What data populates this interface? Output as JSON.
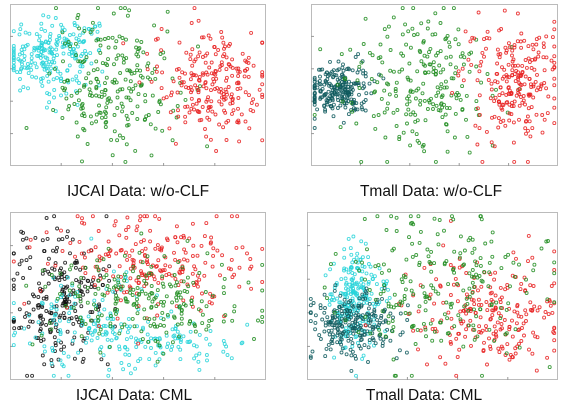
{
  "panels": [
    {
      "caption": "IJCAI Data: w/o-CLF",
      "chart_data": {
        "type": "scatter",
        "title": "IJCAI Data: w/o-CLF",
        "grid": false,
        "legend": "none",
        "series": [
          {
            "color": "#27d3d9",
            "clusters": [
              {
                "cx": -0.72,
                "cy": 0.35,
                "sx": 0.17,
                "sy": 0.22,
                "weight": 0.85
              },
              {
                "cx": -0.45,
                "cy": 0.55,
                "sx": 0.12,
                "sy": 0.12,
                "weight": 0.15
              }
            ]
          },
          {
            "color": "#1e8c1e",
            "clusters": [
              {
                "cx": -0.18,
                "cy": 0.0,
                "sx": 0.24,
                "sy": 0.42,
                "weight": 1.0
              }
            ]
          },
          {
            "color": "#e82020",
            "clusters": [
              {
                "cx": 0.58,
                "cy": 0.05,
                "sx": 0.24,
                "sy": 0.35,
                "weight": 1.0
              }
            ]
          }
        ]
      }
    },
    {
      "caption": "Tmall Data: w/o-CLF",
      "chart_data": {
        "type": "scatter",
        "title": "Tmall Data: w/o-CLF",
        "grid": false,
        "legend": "none",
        "series": [
          {
            "color": "#0f5a5e",
            "clusters": [
              {
                "cx": -0.78,
                "cy": -0.05,
                "sx": 0.13,
                "sy": 0.16,
                "weight": 1.0
              }
            ]
          },
          {
            "color": "#1e8c1e",
            "clusters": [
              {
                "cx": -0.12,
                "cy": 0.05,
                "sx": 0.3,
                "sy": 0.42,
                "weight": 1.0
              }
            ]
          },
          {
            "color": "#e82020",
            "clusters": [
              {
                "cx": 0.62,
                "cy": 0.02,
                "sx": 0.2,
                "sy": 0.36,
                "weight": 1.0
              }
            ]
          }
        ]
      }
    },
    {
      "caption": "IJCAI Data: CML",
      "chart_data": {
        "type": "scatter",
        "title": "IJCAI Data: CML",
        "grid": false,
        "legend": "none",
        "series": [
          {
            "color": "#111111",
            "clusters": [
              {
                "cx": -0.62,
                "cy": -0.05,
                "sx": 0.2,
                "sy": 0.42,
                "weight": 1.0
              }
            ]
          },
          {
            "color": "#27d3d9",
            "clusters": [
              {
                "cx": -0.35,
                "cy": -0.35,
                "sx": 0.3,
                "sy": 0.32,
                "weight": 0.6
              },
              {
                "cx": 0.2,
                "cy": -0.55,
                "sx": 0.3,
                "sy": 0.15,
                "weight": 0.4
              }
            ]
          },
          {
            "color": "#e82020",
            "clusters": [
              {
                "cx": 0.05,
                "cy": 0.4,
                "sx": 0.4,
                "sy": 0.28,
                "weight": 1.0
              }
            ]
          },
          {
            "color": "#1e8c1e",
            "clusters": [
              {
                "cx": 0.1,
                "cy": -0.05,
                "sx": 0.4,
                "sy": 0.3,
                "weight": 1.0
              }
            ]
          }
        ]
      }
    },
    {
      "caption": "Tmall Data: CML",
      "chart_data": {
        "type": "scatter",
        "title": "Tmall Data: CML",
        "grid": false,
        "legend": "none",
        "series": [
          {
            "color": "#27d3d9",
            "clusters": [
              {
                "cx": -0.62,
                "cy": -0.05,
                "sx": 0.1,
                "sy": 0.3,
                "weight": 1.0
              }
            ]
          },
          {
            "color": "#0f5a5e",
            "clusters": [
              {
                "cx": -0.62,
                "cy": -0.35,
                "sx": 0.18,
                "sy": 0.2,
                "weight": 1.0
              }
            ]
          },
          {
            "color": "#e82020",
            "clusters": [
              {
                "cx": 0.42,
                "cy": -0.22,
                "sx": 0.3,
                "sy": 0.35,
                "weight": 1.0
              }
            ]
          },
          {
            "color": "#1e8c1e",
            "clusters": [
              {
                "cx": 0.02,
                "cy": 0.1,
                "sx": 0.42,
                "sy": 0.45,
                "weight": 1.0
              }
            ]
          }
        ]
      }
    }
  ]
}
